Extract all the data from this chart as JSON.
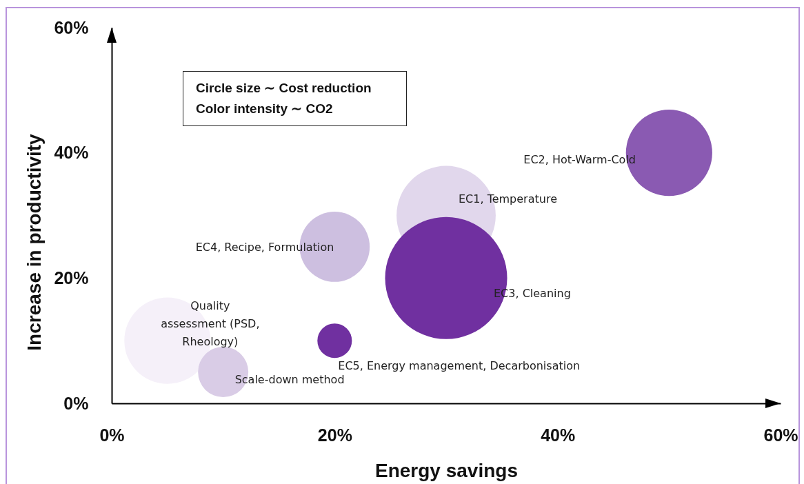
{
  "chart_data": {
    "type": "bubble",
    "xlabel": "Energy savings",
    "ylabel": "Increase in productivity",
    "xlim": [
      0,
      60
    ],
    "ylim": [
      0,
      60
    ],
    "xticks": [
      {
        "value": 0,
        "label": "0%"
      },
      {
        "value": 20,
        "label": "20%"
      },
      {
        "value": 40,
        "label": "40%"
      },
      {
        "value": 60,
        "label": "60%"
      }
    ],
    "yticks": [
      {
        "value": 0,
        "label": "0%"
      },
      {
        "value": 20,
        "label": "20%"
      },
      {
        "value": 40,
        "label": "40%"
      },
      {
        "value": 60,
        "label": "60%"
      }
    ],
    "grid": false,
    "legend": false,
    "marker": "circle",
    "annotations": [
      "Circle size ∼ Cost reduction",
      "Color intensity ∼ CO2"
    ],
    "series": [
      {
        "name": "Quality assessment (PSD, Rheology)",
        "color": "#f5f0f9",
        "x": [
          5
        ],
        "values": [
          10
        ],
        "sizes": [
          0.5
        ]
      },
      {
        "name": "Scale-down method",
        "color": "#d9cce6",
        "x": [
          10
        ],
        "values": [
          5
        ],
        "sizes": [
          0.17
        ]
      },
      {
        "name": "EC4, Recipe, Formulation",
        "color": "#cdbfe0",
        "x": [
          20
        ],
        "values": [
          25
        ],
        "sizes": [
          0.33
        ]
      },
      {
        "name": "EC5, Energy management, Decarbonisation",
        "color": "#7030a0",
        "x": [
          20
        ],
        "values": [
          10
        ],
        "sizes": [
          0.08
        ]
      },
      {
        "name": "EC1, Temperature",
        "color": "#e1d7ec",
        "x": [
          30
        ],
        "values": [
          30
        ],
        "sizes": [
          0.66
        ]
      },
      {
        "name": "EC3, Cleaning",
        "color": "#7030a0",
        "x": [
          30
        ],
        "values": [
          20
        ],
        "sizes": [
          1
        ]
      },
      {
        "name": "EC2, Hot-Warm-Cold",
        "color": "#8a5ab2",
        "x": [
          50
        ],
        "values": [
          40
        ],
        "sizes": [
          0.5
        ]
      }
    ]
  }
}
